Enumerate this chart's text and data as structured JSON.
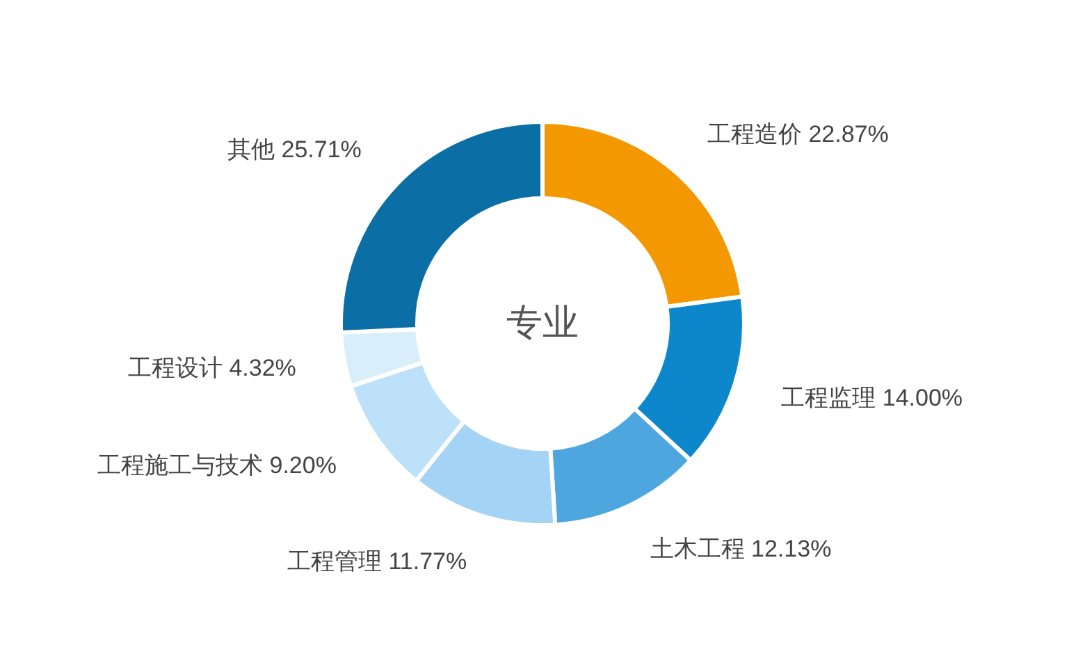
{
  "chart_data": {
    "type": "donut",
    "title": "专业",
    "categories": [
      "工程造价",
      "工程监理",
      "土木工程",
      "工程管理",
      "工程施工与技术",
      "工程设计",
      "其他"
    ],
    "values": [
      22.87,
      14.0,
      12.13,
      11.77,
      9.2,
      4.32,
      25.71
    ],
    "value_labels": [
      "22.87%",
      "14.00%",
      "12.13%",
      "11.77%",
      "9.20%",
      "4.32%",
      "25.71%"
    ],
    "colors": [
      "#f39800",
      "#0d87cc",
      "#4da6de",
      "#a3d4f5",
      "#bde1f8",
      "#d8eefb",
      "#0b6fa6"
    ]
  }
}
